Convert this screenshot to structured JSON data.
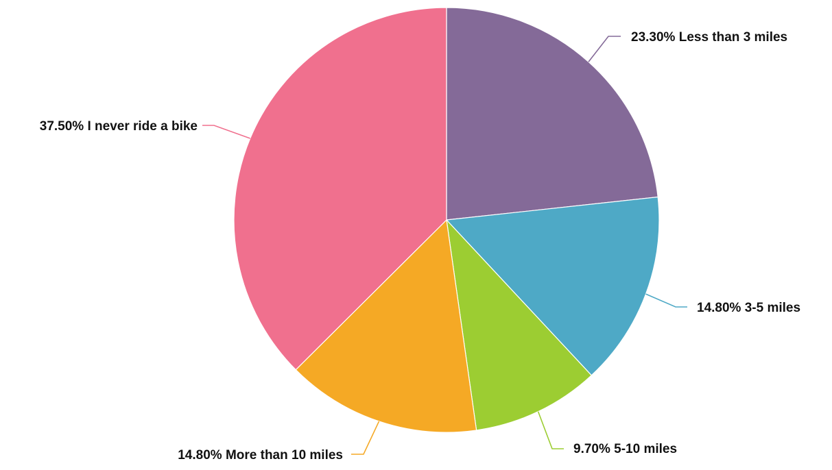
{
  "chart_data": {
    "type": "pie",
    "slices": [
      {
        "label": "Less than 3 miles",
        "percent_label": "23.30%",
        "value": 23.3,
        "color": "#846a98"
      },
      {
        "label": "3-5 miles",
        "percent_label": "14.80%",
        "value": 14.8,
        "color": "#4ea9c6"
      },
      {
        "label": "5-10 miles",
        "percent_label": "9.70%",
        "value": 9.7,
        "color": "#9ccd32"
      },
      {
        "label": "More than 10 miles",
        "percent_label": "14.80%",
        "value": 14.8,
        "color": "#f5a925"
      },
      {
        "label": "I never ride a bike",
        "percent_label": "37.50%",
        "value": 37.5,
        "color": "#f0708e"
      }
    ],
    "start_angle": "12 o'clock",
    "direction": "clockwise",
    "legend": "none"
  }
}
